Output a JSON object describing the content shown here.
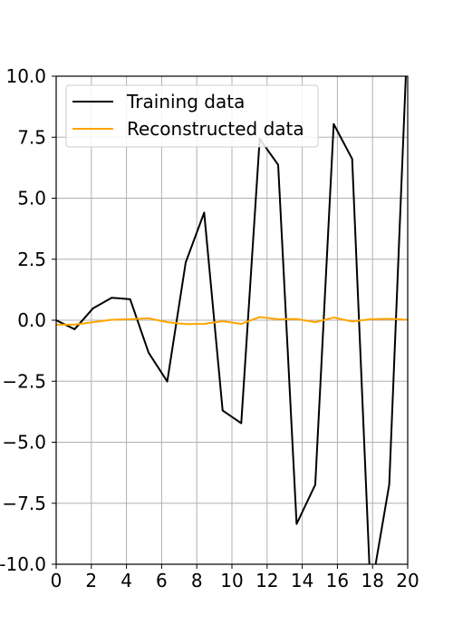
{
  "chart_data": {
    "type": "line",
    "title": "",
    "xlabel": "",
    "ylabel": "",
    "xlim": [
      0,
      20
    ],
    "ylim": [
      -10,
      10
    ],
    "grid": true,
    "legend_position": "top-left",
    "x_ticks": [
      0,
      2,
      4,
      6,
      8,
      10,
      12,
      14,
      16,
      18,
      20
    ],
    "x_tick_labels": [
      "0",
      "2",
      "4",
      "6",
      "8",
      "10",
      "12",
      "14",
      "16",
      "18",
      "20"
    ],
    "y_ticks": [
      -10,
      -7.5,
      -5,
      -2.5,
      0,
      2.5,
      5,
      7.5,
      10
    ],
    "y_tick_labels": [
      "-10.0",
      "−7.5",
      "−5.0",
      "−2.5",
      "0.0",
      "2.5",
      "5.0",
      "7.5",
      "10.0"
    ],
    "series": [
      {
        "name": "Training data",
        "color": "#000000",
        "x": [
          0,
          1.05,
          2.1,
          3.16,
          4.21,
          5.26,
          6.32,
          7.37,
          8.42,
          9.47,
          10.53,
          11.58,
          12.63,
          13.68,
          14.74,
          15.79,
          16.84,
          17.89,
          18.95,
          20
        ],
        "y": [
          0,
          -0.37,
          0.49,
          0.92,
          0.86,
          -1.33,
          -2.51,
          2.37,
          4.41,
          -3.7,
          -4.22,
          7.43,
          6.37,
          -8.35,
          -6.74,
          8.04,
          6.61,
          -11.2,
          -6.73,
          11.9
        ]
      },
      {
        "name": "Reconstructed data",
        "color": "#ffa500",
        "x": [
          0,
          1.05,
          2.1,
          3.16,
          4.21,
          5.26,
          6.32,
          7.37,
          8.42,
          9.47,
          10.53,
          11.58,
          12.63,
          13.68,
          14.74,
          15.79,
          16.84,
          17.89,
          18.95,
          20
        ],
        "y": [
          -0.18,
          -0.18,
          -0.08,
          0.02,
          0.04,
          0.08,
          -0.08,
          -0.16,
          -0.15,
          -0.04,
          -0.15,
          0.13,
          0.04,
          0.05,
          -0.08,
          0.11,
          -0.05,
          0.04,
          0.06,
          0.02
        ]
      }
    ]
  }
}
